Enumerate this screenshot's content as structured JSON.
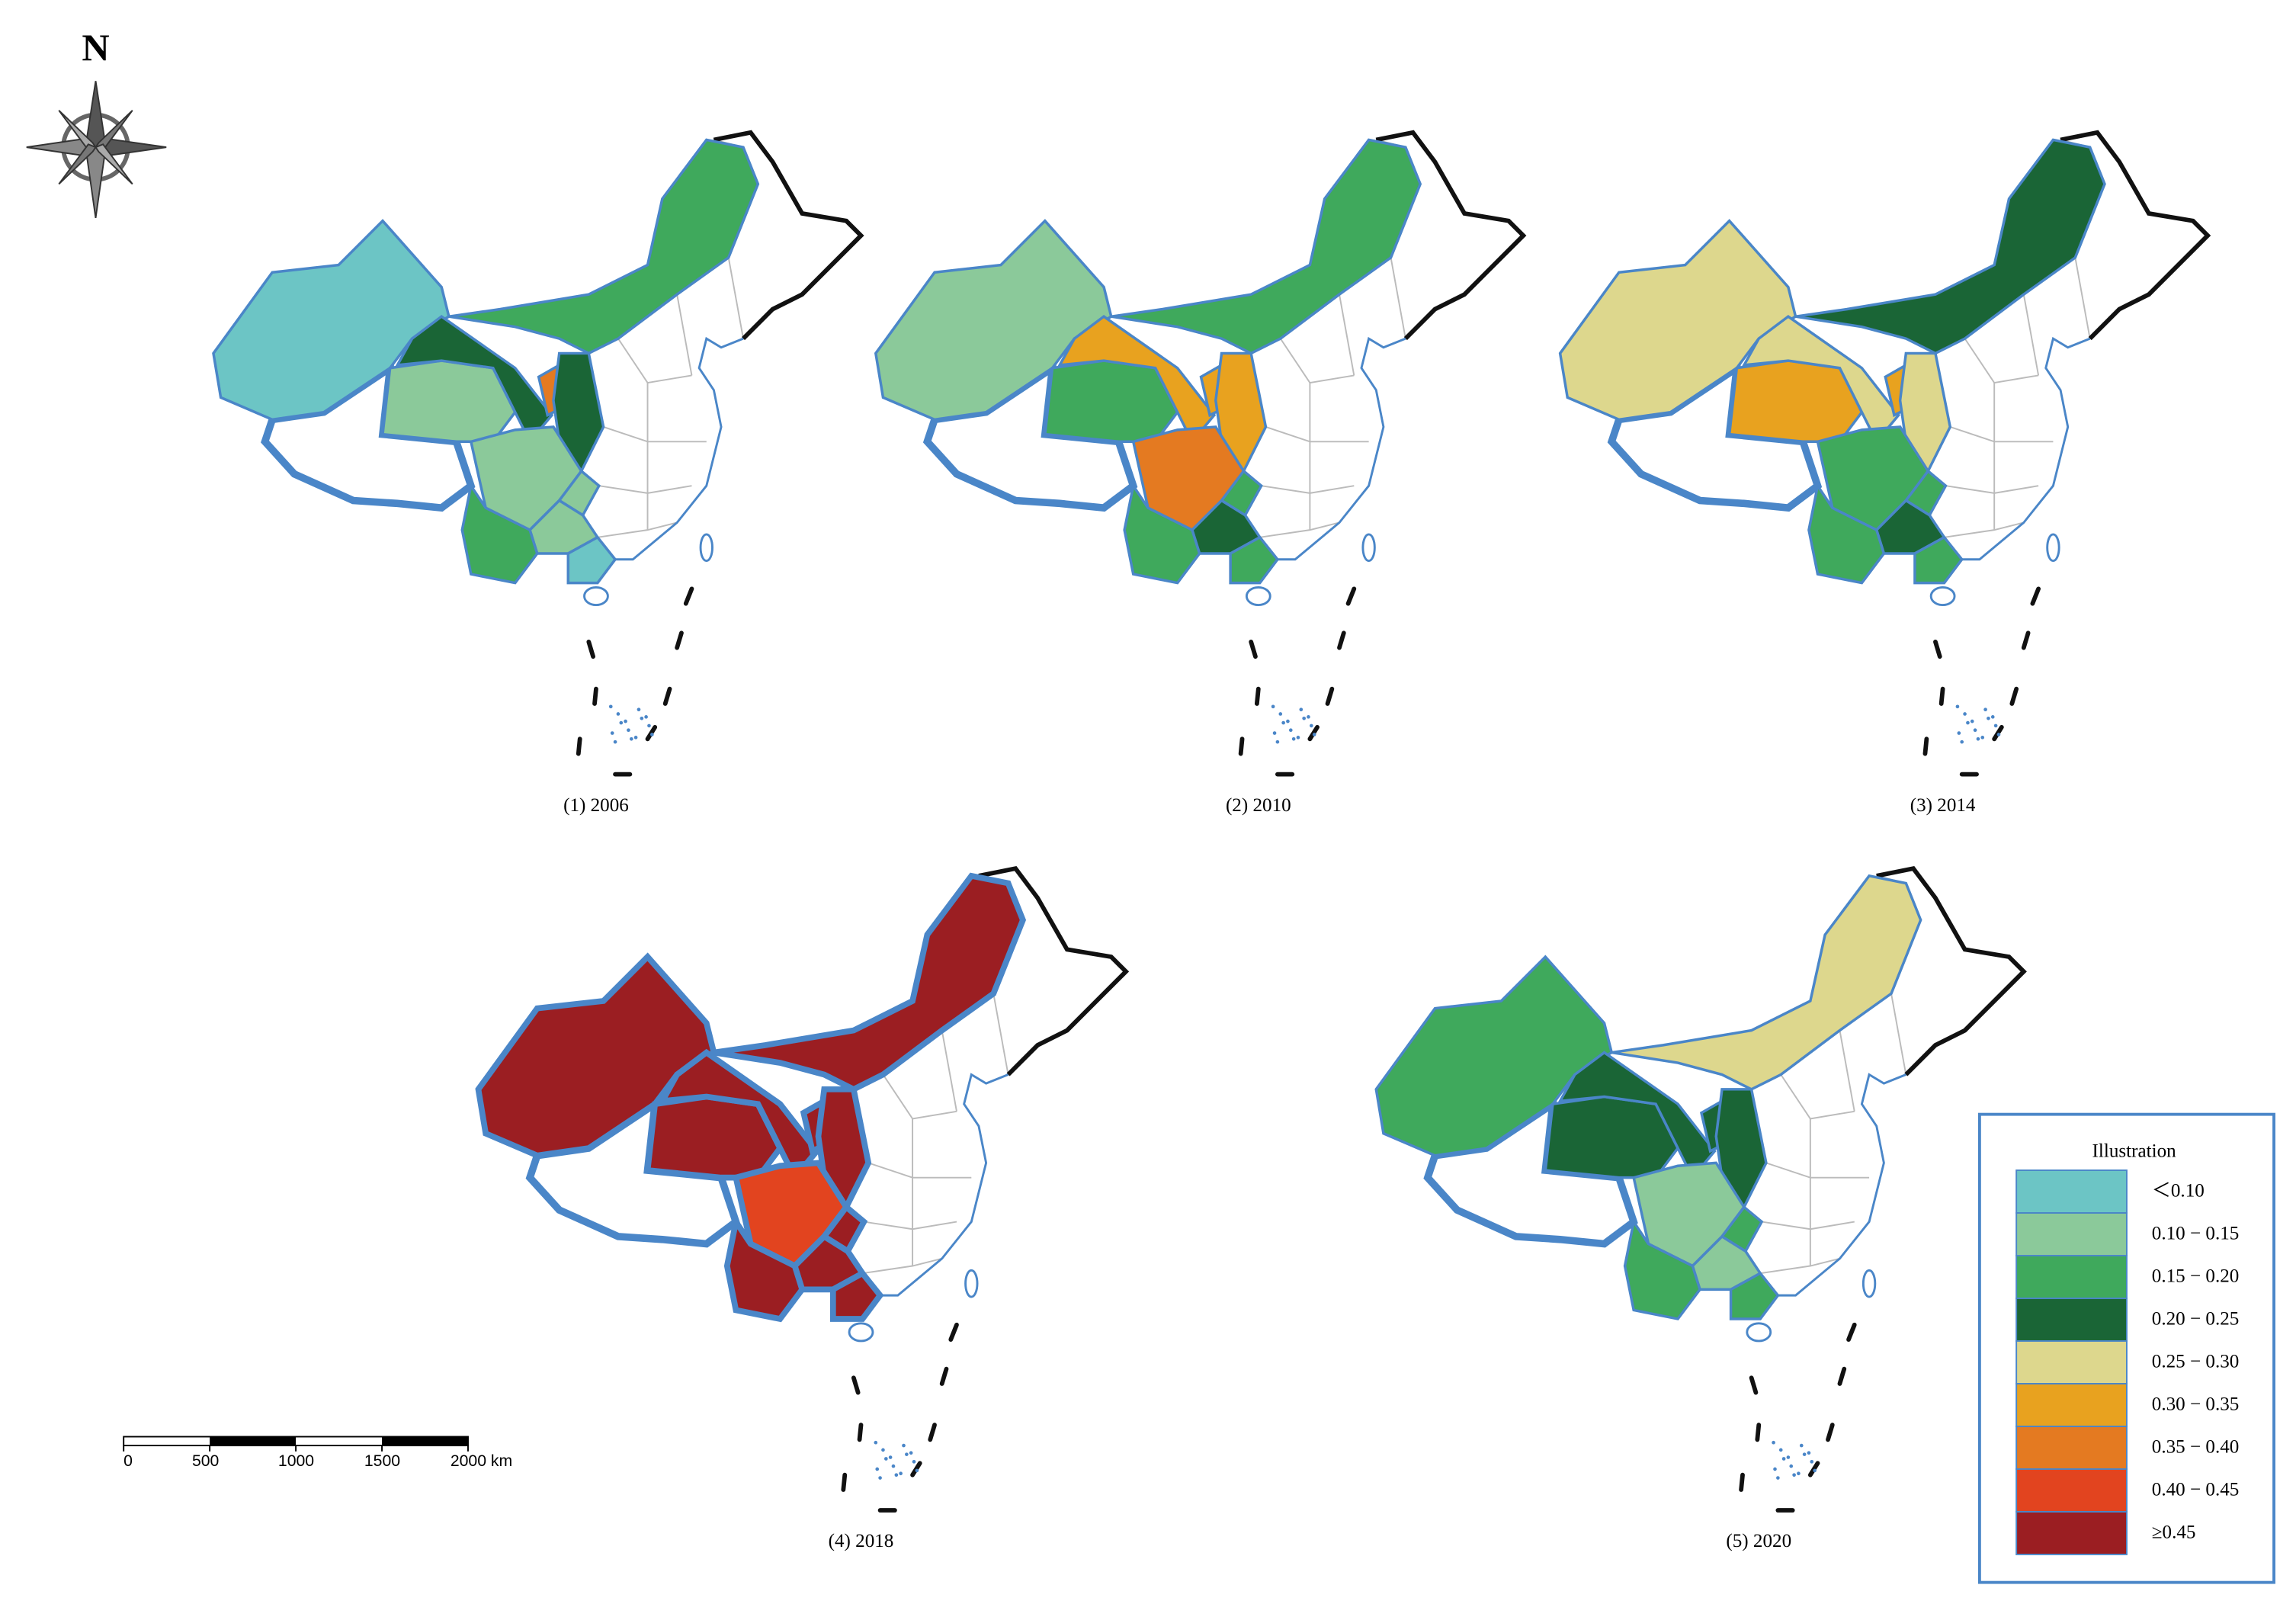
{
  "north": "N",
  "maps": [
    {
      "caption": "(1)  2006",
      "fills": [
        "#6cc5c5",
        "#8bc99a",
        "#1a6536",
        "#3fa95c",
        "#e47a21",
        "#1a6536",
        "#8bc99a",
        "#8bc99a",
        "#8bc99a",
        "#3fa95c",
        "#6cc5c5"
      ]
    },
    {
      "caption": "(2)  2010",
      "fills": [
        "#8bc99a",
        "#3fa95c",
        "#e8a21f",
        "#3fa95c",
        "#e8a21f",
        "#e8a21f",
        "#e47a21",
        "#3fa95c",
        "#1a6536",
        "#3fa95c",
        "#3fa95c"
      ]
    },
    {
      "caption": "(3)  2014",
      "fills": [
        "#ddd78d",
        "#e8a21f",
        "#ddd78d",
        "#1a6536",
        "#e8a21f",
        "#ddd78d",
        "#3fa95c",
        "#3fa95c",
        "#1a6536",
        "#3fa95c",
        "#3fa95c"
      ]
    },
    {
      "caption": "(4)  2018",
      "fills": [
        "#9b1e22",
        "#9b1e22",
        "#9b1e22",
        "#9b1e22",
        "#9b1e22",
        "#9b1e22",
        "#e2441f",
        "#9b1e22",
        "#9b1e22",
        "#9b1e22",
        "#9b1e22"
      ]
    },
    {
      "caption": "(5)  2020",
      "fills": [
        "#3fa95c",
        "#1a6536",
        "#1a6536",
        "#ddd78d",
        "#1a6536",
        "#1a6536",
        "#8bc99a",
        "#3fa95c",
        "#8bc99a",
        "#3fa95c",
        "#3fa95c"
      ]
    }
  ],
  "legend": {
    "title": "Illustration",
    "items": [
      {
        "label": "＜0.10",
        "color": "#6cc5c5"
      },
      {
        "label": "0.10 − 0.15",
        "color": "#8bc99a"
      },
      {
        "label": "0.15 − 0.20",
        "color": "#3fa95c"
      },
      {
        "label": "0.20 − 0.25",
        "color": "#1a6536"
      },
      {
        "label": "0.25 − 0.30",
        "color": "#ddd78d"
      },
      {
        "label": "0.30 − 0.35",
        "color": "#e8a21f"
      },
      {
        "label": "0.35 − 0.40",
        "color": "#e47a21"
      },
      {
        "label": "0.40 − 0.45",
        "color": "#e2441f"
      },
      {
        "label": "≥0.45",
        "color": "#9b1e22"
      }
    ]
  },
  "scale_bar": {
    "labels": [
      "0",
      "500",
      "1000",
      "1500",
      "2000 km"
    ]
  }
}
